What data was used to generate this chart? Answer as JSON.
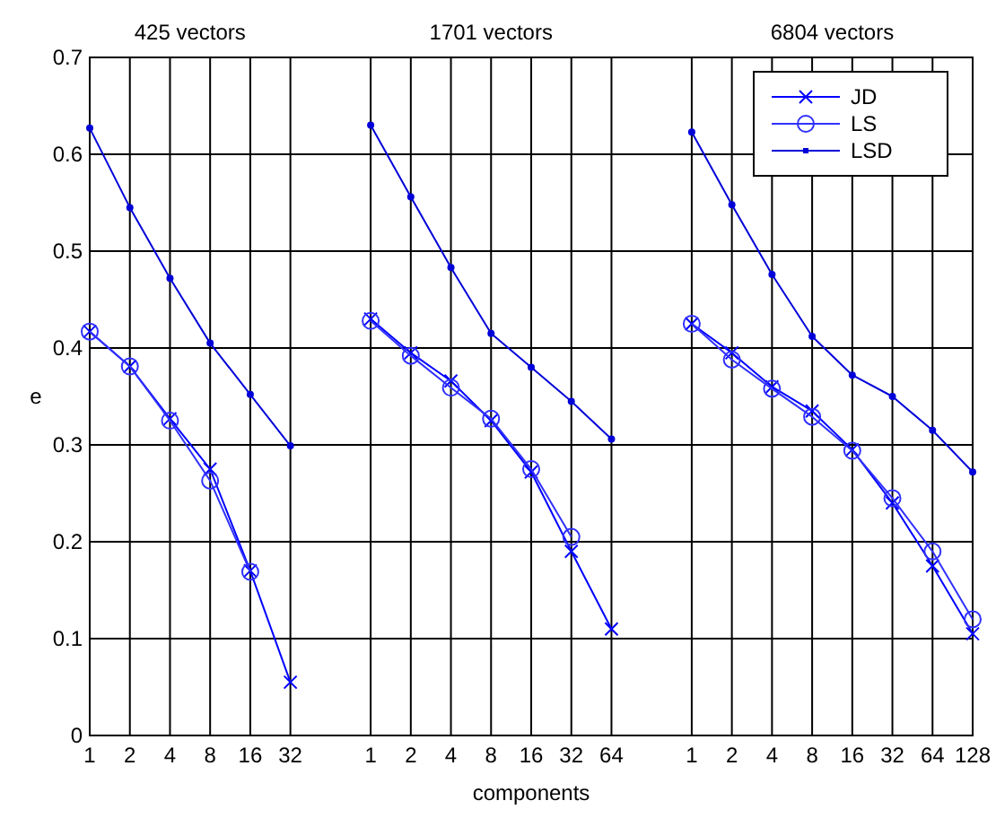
{
  "chart_data": {
    "type": "line",
    "xlabel": "components",
    "ylabel": "e",
    "annotations": [
      "425 vectors",
      "1701 vectors",
      "6804 vectors"
    ],
    "categories": [
      "1",
      "2",
      "4",
      "8",
      "16",
      "32",
      null,
      "1",
      "2",
      "4",
      "8",
      "16",
      "32",
      "64",
      null,
      "1",
      "2",
      "4",
      "8",
      "16",
      "32",
      "64",
      "128"
    ],
    "ylim": [
      0,
      0.7
    ],
    "yticks": [
      0,
      0.1,
      0.2,
      0.3,
      0.4,
      0.5,
      0.6,
      0.7
    ],
    "grid": true,
    "legend": "top right",
    "line_style": "solid",
    "series": [
      {
        "name": "JD",
        "color": "#0000ff",
        "marker": "cross",
        "values": [
          0.417,
          0.381,
          0.327,
          0.275,
          0.17,
          0.055,
          null,
          0.43,
          0.395,
          0.366,
          0.325,
          0.272,
          0.19,
          0.11,
          null,
          0.425,
          0.395,
          0.36,
          0.335,
          0.295,
          0.24,
          0.175,
          0.105
        ]
      },
      {
        "name": "LS",
        "color": "#3030ff",
        "marker": "circle",
        "values": [
          0.417,
          0.381,
          0.325,
          0.263,
          0.169,
          null,
          null,
          0.428,
          0.392,
          0.359,
          0.327,
          0.275,
          0.205,
          null,
          null,
          0.425,
          0.388,
          0.358,
          0.329,
          0.294,
          0.245,
          0.19,
          0.12
        ]
      },
      {
        "name": "LSD",
        "color": "#0000d8",
        "marker": "dot",
        "values": [
          0.627,
          0.545,
          0.472,
          0.405,
          0.352,
          0.299,
          null,
          0.63,
          0.556,
          0.483,
          0.415,
          0.38,
          0.345,
          0.306,
          null,
          0.623,
          0.548,
          0.476,
          0.412,
          0.372,
          0.35,
          0.315,
          0.272
        ]
      }
    ]
  }
}
